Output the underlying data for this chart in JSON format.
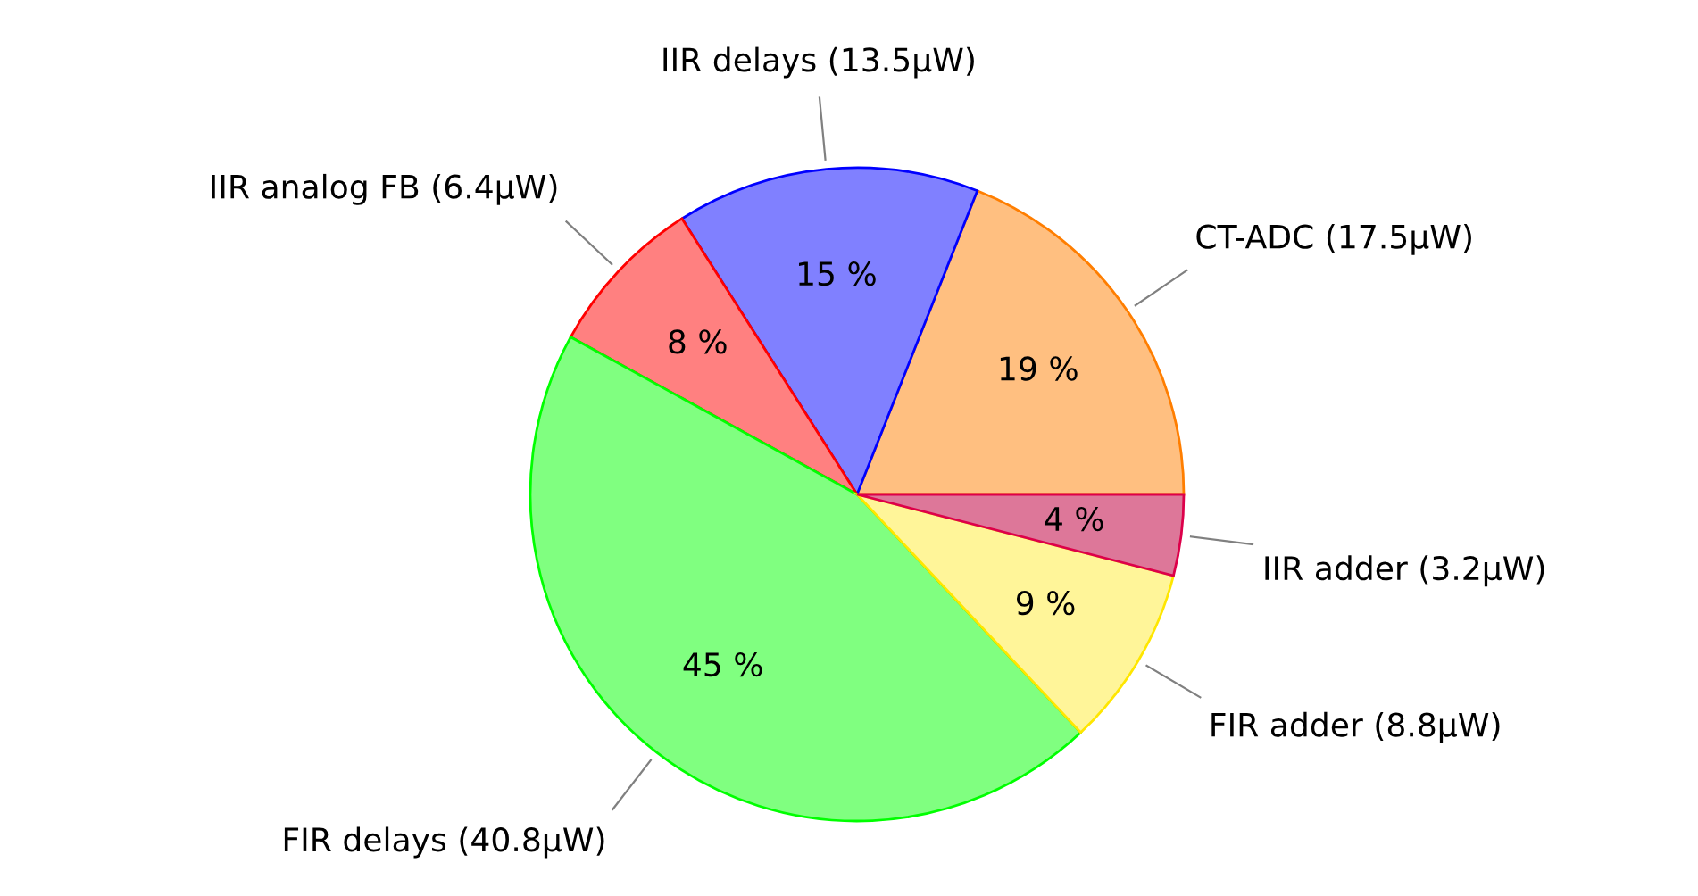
{
  "chart_data": {
    "type": "pie",
    "categories": [
      "CT-ADC (17.5μW)",
      "IIR delays (13.5μW)",
      "IIR analog FB (6.4μW)",
      "FIR delays (40.8μW)",
      "FIR adder (8.8μW)",
      "IIR adder (3.2μW)"
    ],
    "values": [
      19,
      15,
      8,
      45,
      9,
      4
    ],
    "value_labels": [
      "19 %",
      "15 %",
      "8 %",
      "45 %",
      "9 %",
      "4 %"
    ],
    "colors": [
      "#ffbf80",
      "#8080ff",
      "#ff8080",
      "#80ff80",
      "#fff599",
      "#dd7799"
    ],
    "legend": false
  }
}
